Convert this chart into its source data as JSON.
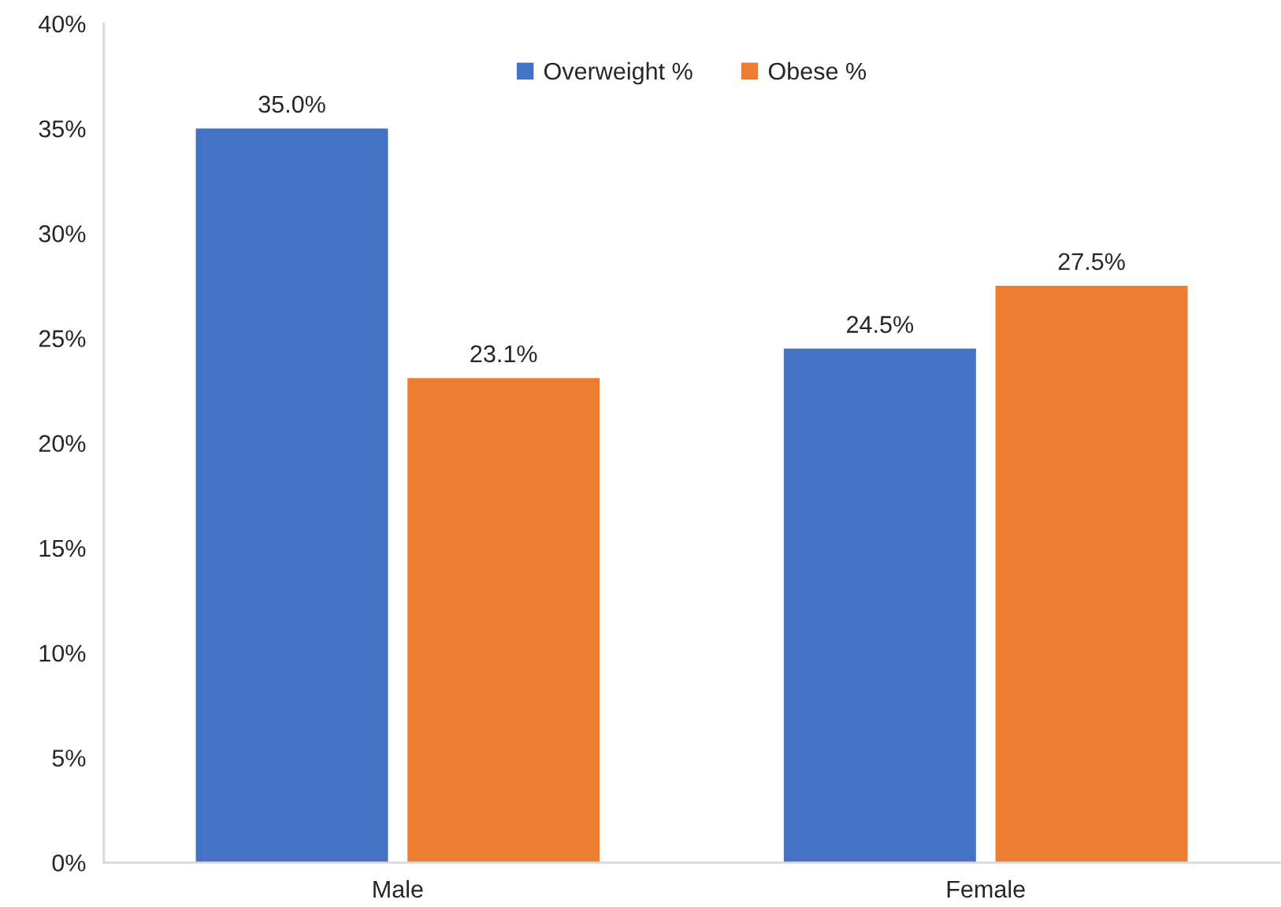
{
  "chart_data": {
    "type": "bar",
    "categories": [
      "Male",
      "Female"
    ],
    "series": [
      {
        "name": "Overweight %",
        "color": "#4472c4",
        "values": [
          35.0,
          24.5
        ],
        "value_labels": [
          "35.0%",
          "24.5%"
        ]
      },
      {
        "name": "Obese %",
        "color": "#ed7d31",
        "values": [
          23.1,
          27.5
        ],
        "value_labels": [
          "23.1%",
          "27.5%"
        ]
      }
    ],
    "ylim": [
      0,
      40
    ],
    "yticks": [
      {
        "value": 0,
        "label": "0%"
      },
      {
        "value": 5,
        "label": "5%"
      },
      {
        "value": 10,
        "label": "10%"
      },
      {
        "value": 15,
        "label": "15%"
      },
      {
        "value": 20,
        "label": "20%"
      },
      {
        "value": 25,
        "label": "25%"
      },
      {
        "value": 30,
        "label": "30%"
      },
      {
        "value": 35,
        "label": "35%"
      },
      {
        "value": 40,
        "label": "40%"
      }
    ],
    "legend": "top"
  }
}
